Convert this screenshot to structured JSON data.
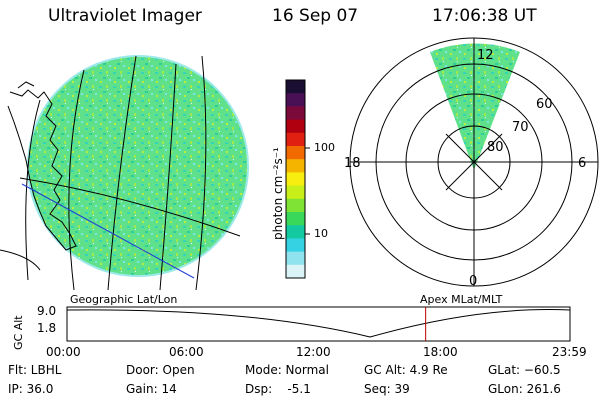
{
  "header": {
    "instrument": "Ultraviolet Imager",
    "date": "16 Sep 07",
    "time": "17:06:38 UT"
  },
  "colorbar": {
    "label": "photon cm⁻²s⁻¹",
    "ticks": [
      "100",
      "10"
    ],
    "colors": [
      "#1a0f33",
      "#4a1055",
      "#7b0a3a",
      "#b00010",
      "#e02010",
      "#f06a00",
      "#f5b400",
      "#f8ee10",
      "#c9ef18",
      "#7fe335",
      "#3ad85a",
      "#12c9a0",
      "#34d2e2",
      "#8fe3ee",
      "#d9f3f6"
    ]
  },
  "polar": {
    "mlt_labels": {
      "top": "12",
      "left": "18",
      "right": "6",
      "bottom": "0"
    },
    "lat_labels": [
      "80",
      "70",
      "60"
    ]
  },
  "orbit": {
    "left_label": "Geographic Lat/Lon",
    "right_label": "Apex  MLat/MLT",
    "y_title": "GC Alt",
    "y_ticks": [
      "9.0",
      "1.8"
    ],
    "x_ticks": [
      "00:00",
      "06:00",
      "12:00",
      "18:00",
      "23:59"
    ],
    "current_time": "17:06",
    "colors": {
      "marker": "#c00000",
      "curve": "#000000"
    }
  },
  "status": {
    "flt": "Flt: LBHL",
    "ip": "IP: 36.0",
    "door": "Door: Open",
    "gain": "Gain: 14",
    "mode": "Mode: Normal",
    "dsp": "Dsp:    -5.1",
    "gcalt": "GC Alt: 4.9 Re",
    "seq": "Seq: 39",
    "glat": "GLat: −60.5",
    "glon": "GLon: 261.6"
  }
}
